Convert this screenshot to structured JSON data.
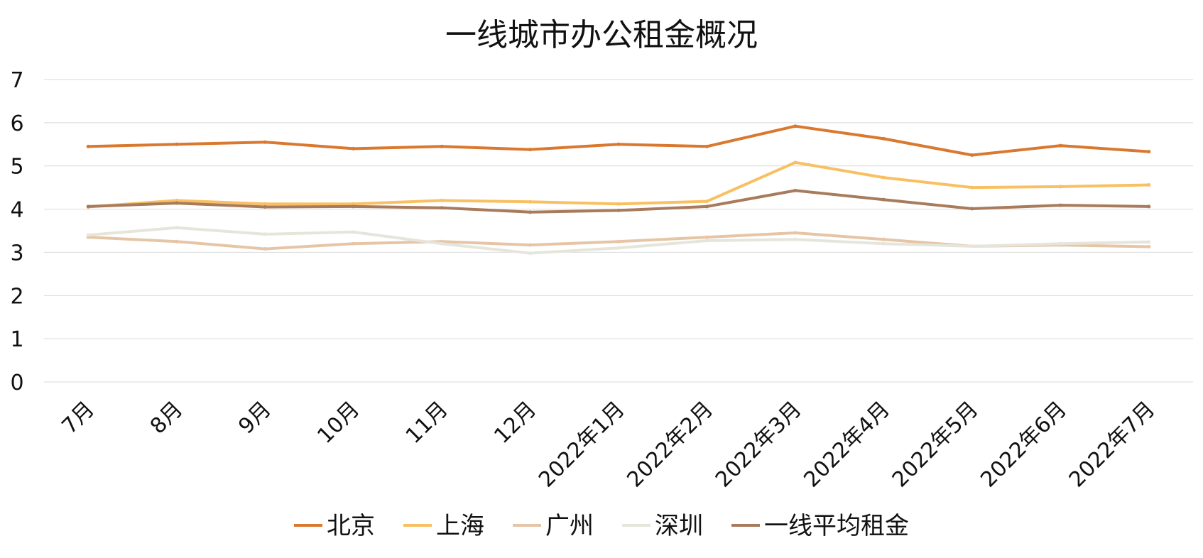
{
  "chart_data": {
    "type": "line",
    "title": "一线城市办公租金概况",
    "xlabel": "",
    "ylabel": "",
    "ylim": [
      0,
      7
    ],
    "yticks": [
      0,
      1,
      2,
      3,
      4,
      5,
      6,
      7
    ],
    "grid": true,
    "legend_position": "bottom",
    "categories": [
      "7月",
      "8月",
      "9月",
      "10月",
      "11月",
      "12月",
      "2022年1月",
      "2022年2月",
      "2022年3月",
      "2022年4月",
      "2022年5月",
      "2022年6月",
      "2022年7月"
    ],
    "series": [
      {
        "name": "北京",
        "color": "#d9782e",
        "values": [
          5.45,
          5.5,
          5.55,
          5.4,
          5.45,
          5.38,
          5.5,
          5.45,
          5.92,
          5.63,
          5.25,
          5.47,
          5.33
        ]
      },
      {
        "name": "上海",
        "color": "#f8c062",
        "values": [
          4.05,
          4.2,
          4.12,
          4.12,
          4.2,
          4.17,
          4.12,
          4.18,
          5.08,
          4.73,
          4.5,
          4.52,
          4.56
        ]
      },
      {
        "name": "广州",
        "color": "#e6c5a6",
        "values": [
          3.35,
          3.25,
          3.08,
          3.2,
          3.25,
          3.17,
          3.25,
          3.35,
          3.45,
          3.3,
          3.14,
          3.17,
          3.13
        ]
      },
      {
        "name": "深圳",
        "color": "#e6e5dc",
        "values": [
          3.4,
          3.57,
          3.42,
          3.47,
          3.2,
          2.98,
          3.1,
          3.27,
          3.3,
          3.2,
          3.14,
          3.2,
          3.24
        ]
      },
      {
        "name": "一线平均租金",
        "color": "#a87b5c",
        "values": [
          4.06,
          4.14,
          4.05,
          4.06,
          4.03,
          3.93,
          3.97,
          4.06,
          4.43,
          4.22,
          4.01,
          4.09,
          4.06
        ]
      }
    ]
  }
}
